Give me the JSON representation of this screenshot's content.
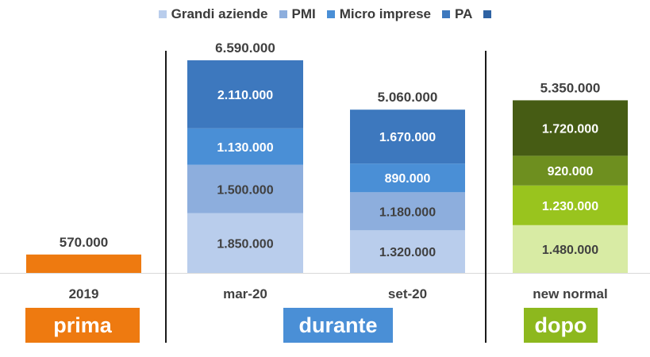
{
  "chart_data": {
    "type": "bar",
    "stacked": true,
    "legend": [
      {
        "label": "Grandi aziende",
        "color": "#B9CDEC"
      },
      {
        "label": "PMI",
        "color": "#8DAEDD"
      },
      {
        "label": "Micro imprese",
        "color": "#4A8FD6"
      },
      {
        "label": "PA",
        "color": "#3D78BE"
      },
      {
        "label": "",
        "color": "#2E62A3"
      }
    ],
    "legend_position": "top",
    "categories": [
      "2019",
      "mar-20",
      "set-20",
      "new normal"
    ],
    "bars": [
      {
        "category": "2019",
        "total": "570.000",
        "segments": [
          {
            "value": 570000,
            "label": "",
            "color": "#EE7A10"
          }
        ]
      },
      {
        "category": "mar-20",
        "total": "6.590.000",
        "segments": [
          {
            "value": 1850000,
            "label": "1.850.000",
            "color": "#B9CDEC"
          },
          {
            "value": 1500000,
            "label": "1.500.000",
            "color": "#8DAEDD"
          },
          {
            "value": 1130000,
            "label": "1.130.000",
            "color": "#4A8FD6"
          },
          {
            "value": 2110000,
            "label": "2.110.000",
            "color": "#3D78BE"
          }
        ]
      },
      {
        "category": "set-20",
        "total": "5.060.000",
        "segments": [
          {
            "value": 1320000,
            "label": "1.320.000",
            "color": "#B9CDEC"
          },
          {
            "value": 1180000,
            "label": "1.180.000",
            "color": "#8DAEDD"
          },
          {
            "value": 890000,
            "label": "890.000",
            "color": "#4A8FD6"
          },
          {
            "value": 1670000,
            "label": "1.670.000",
            "color": "#3D78BE"
          }
        ]
      },
      {
        "category": "new normal",
        "total": "5.350.000",
        "segments": [
          {
            "value": 1480000,
            "label": "1.480.000",
            "color": "#D8EBA4"
          },
          {
            "value": 1230000,
            "label": "1.230.000",
            "color": "#99C41E"
          },
          {
            "value": 920000,
            "label": "920.000",
            "color": "#6E8F1F"
          },
          {
            "value": 1720000,
            "label": "1.720.000",
            "color": "#465C14"
          }
        ]
      }
    ],
    "y_max": 6590000,
    "phases": [
      {
        "label": "prima",
        "color": "#EE7A10"
      },
      {
        "label": "durante",
        "color": "#4A8FD6"
      },
      {
        "label": "dopo",
        "color": "#8DB81E"
      }
    ]
  }
}
